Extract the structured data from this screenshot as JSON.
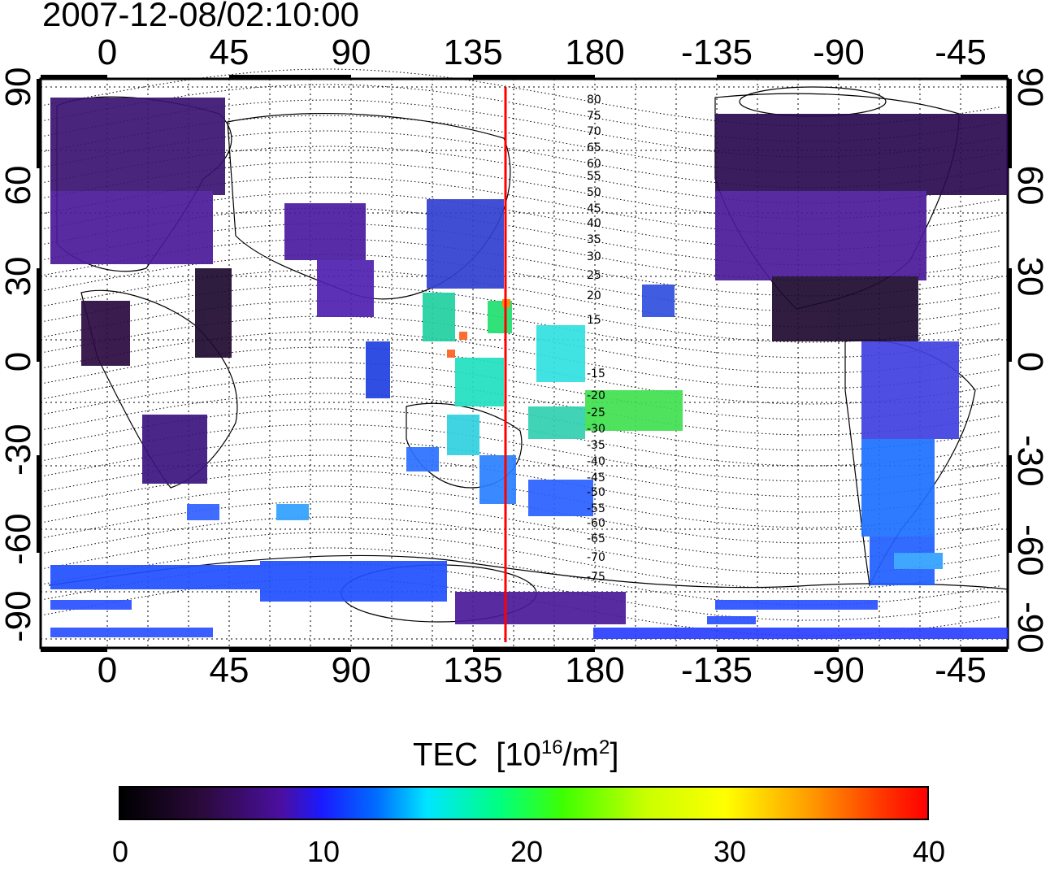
{
  "title": "2007-12-08/02:10:00",
  "x_ticks": [
    "0",
    "45",
    "90",
    "135",
    "180",
    "-135",
    "-90",
    "-45"
  ],
  "y_ticks": [
    "90",
    "60",
    "30",
    "0",
    "-30",
    "-60",
    "-90"
  ],
  "contour_labels": [
    "80",
    "75",
    "70",
    "65",
    "60",
    "55",
    "50",
    "45",
    "40",
    "35",
    "30",
    "25",
    "20",
    "15",
    "-15",
    "-20",
    "-25",
    "-30",
    "-35",
    "-40",
    "-45",
    "-50",
    "-55",
    "-60",
    "-65",
    "-70",
    "-75"
  ],
  "colorbar": {
    "label": "TEC",
    "unit_base": "[10",
    "unit_exp": "16",
    "unit_mid": "/m",
    "unit_exp2": "2",
    "unit_end": "]",
    "ticks": [
      "0",
      "10",
      "20",
      "30",
      "40"
    ]
  },
  "colors": {
    "marker_line": "#ff0000",
    "background": "#ffffff"
  }
}
